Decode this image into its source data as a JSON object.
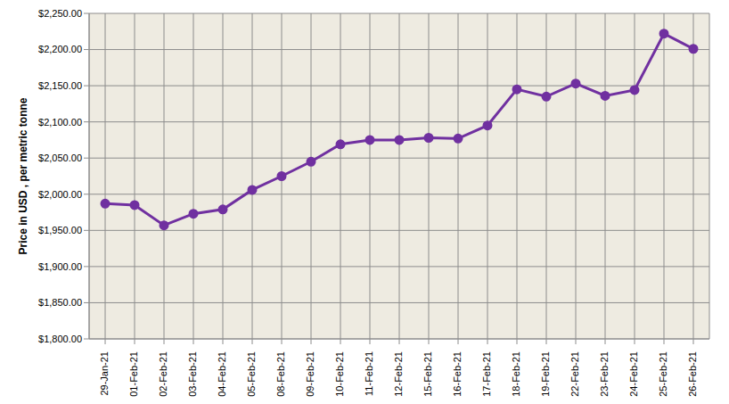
{
  "chart_data": {
    "type": "line",
    "y_label": "Price in USD , per metric tonne",
    "categories": [
      "29-Jan-21",
      "01-Feb-21",
      "02-Feb-21",
      "03-Feb-21",
      "04-Feb-21",
      "05-Feb-21",
      "08-Feb-21",
      "09-Feb-21",
      "10-Feb-21",
      "11-Feb-21",
      "12-Feb-21",
      "15-Feb-21",
      "16-Feb-21",
      "17-Feb-21",
      "18-Feb-21",
      "19-Feb-21",
      "22-Feb-21",
      "23-Feb-21",
      "24-Feb-21",
      "25-Feb-21",
      "26-Feb-21"
    ],
    "values": [
      1987,
      1985,
      1957,
      1973,
      1979,
      2006,
      2025,
      2045,
      2069,
      2075,
      2075,
      2078,
      2077,
      2095,
      2145,
      2135,
      2153,
      2136,
      2144,
      2222,
      2201
    ],
    "color": "#7030a0",
    "marker": "circle",
    "ylim": [
      1800,
      2250
    ],
    "yticks": [
      {
        "value": 1800,
        "label": "$1,800.00"
      },
      {
        "value": 1850,
        "label": "$1,850.00"
      },
      {
        "value": 1900,
        "label": "$1,900.00"
      },
      {
        "value": 1950,
        "label": "$1,950.00"
      },
      {
        "value": 2000,
        "label": "$2,000.00"
      },
      {
        "value": 2050,
        "label": "$2,050.00"
      },
      {
        "value": 2100,
        "label": "$2,100.00"
      },
      {
        "value": 2150,
        "label": "$2,150.00"
      },
      {
        "value": 2200,
        "label": "$2,200.00"
      },
      {
        "value": 2250,
        "label": "$2,250.00"
      }
    ],
    "grid": true
  }
}
